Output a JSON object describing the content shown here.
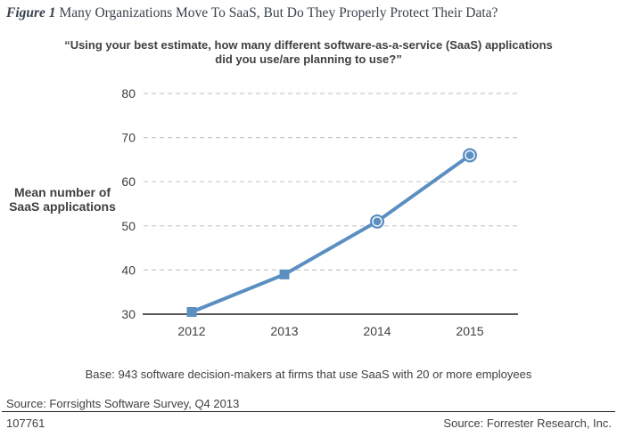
{
  "title": {
    "figure_label": "Figure 1",
    "text": "Many Organizations Move To SaaS, But Do They Properly Protect Their Data?"
  },
  "subtitle": "“Using your best estimate, how many different software-as-a-service (SaaS) applications did you use/are planning to use?”",
  "y_axis_label": "Mean number of SaaS applications",
  "footnotes": {
    "base": "Base: 943 software decision-makers at firms that use SaaS with 20 or more employees",
    "source": "Source: Forrsights Software Survey, Q4 2013",
    "doc_id": "107761",
    "copyright": "Source: Forrester Research, Inc."
  },
  "colors": {
    "line": "#5b8fc1",
    "grid": "#c9c9c9",
    "axis": "#231f20",
    "text": "#404040"
  },
  "chart_data": {
    "type": "line",
    "categories": [
      "2012",
      "2013",
      "2014",
      "2015"
    ],
    "values": [
      30.5,
      39,
      51,
      66
    ],
    "markers": [
      "square",
      "square",
      "circle-ring",
      "circle-ring"
    ],
    "series": [
      {
        "name": "Mean number of SaaS applications",
        "values": [
          30.5,
          39,
          51,
          66
        ]
      }
    ],
    "title": "Using your best estimate, how many different software-as-a-service (SaaS) applications did you use/are planning to use?",
    "xlabel": "",
    "ylabel": "Mean number of SaaS applications",
    "ylim": [
      30,
      80
    ],
    "yticks": [
      30,
      40,
      50,
      60,
      70,
      80
    ],
    "grid": "dashed-horizontal",
    "legend": "none"
  }
}
